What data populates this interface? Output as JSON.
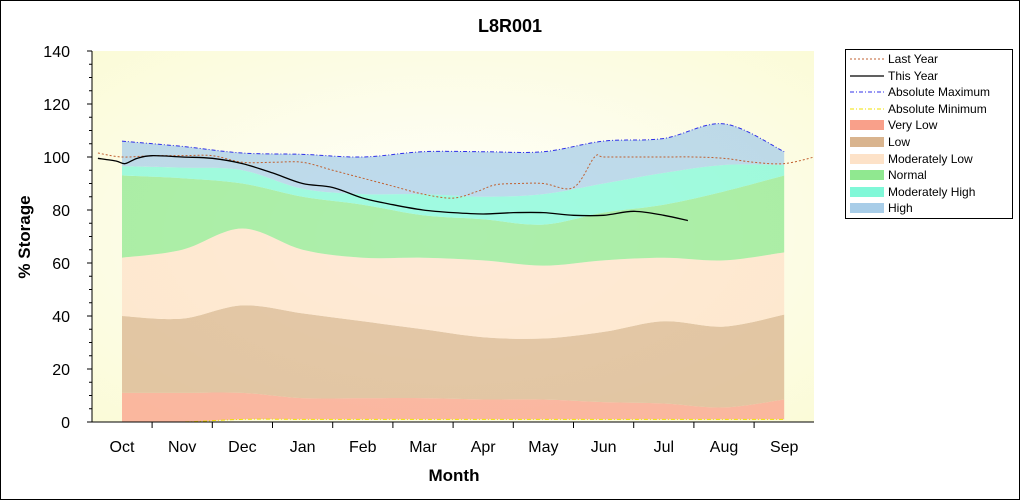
{
  "chart_data": {
    "type": "area",
    "title": "L8R001",
    "xlabel": "Month",
    "ylabel": "% Storage",
    "ylim": [
      0,
      140
    ],
    "yticks": [
      0,
      20,
      40,
      60,
      80,
      100,
      120,
      140
    ],
    "grid": false,
    "legend_position": "right",
    "categories": [
      "Oct",
      "Nov",
      "Dec",
      "Jan",
      "Feb",
      "Mar",
      "Apr",
      "May",
      "Jun",
      "Jul",
      "Aug",
      "Sep"
    ],
    "bands": [
      {
        "name": "Very Low",
        "color": "#f9a08a",
        "lower": [
          0,
          0,
          1,
          1,
          1,
          1,
          1,
          1,
          1,
          1,
          1,
          1
        ],
        "upper": [
          11,
          11,
          11,
          9,
          9,
          9,
          8.5,
          8.5,
          7.5,
          7,
          5.5,
          8.5
        ]
      },
      {
        "name": "Low",
        "color": "#d9b48e",
        "lower": [
          11,
          11,
          11,
          9,
          9,
          9,
          8.5,
          8.5,
          7.5,
          7,
          5.5,
          8.5
        ],
        "upper": [
          40,
          39,
          44,
          41,
          38,
          35,
          32,
          31.5,
          34,
          38,
          36,
          40.5
        ]
      },
      {
        "name": "Moderately Low",
        "color": "#fde2c8",
        "lower": [
          40,
          39,
          44,
          41,
          38,
          35,
          32,
          31.5,
          34,
          38,
          36,
          40.5
        ],
        "upper": [
          62,
          65,
          73,
          65,
          62,
          62,
          61,
          59,
          61,
          62,
          61,
          64
        ]
      },
      {
        "name": "Normal",
        "color": "#90e890",
        "lower": [
          62,
          65,
          73,
          65,
          62,
          62,
          61,
          59,
          61,
          62,
          61,
          64
        ],
        "upper": [
          93,
          92,
          90,
          85,
          82,
          78,
          76.5,
          74.5,
          79,
          82,
          87,
          93
        ]
      },
      {
        "name": "Moderately High",
        "color": "#80f8d8",
        "lower": [
          93,
          92,
          90,
          85,
          82,
          78,
          76.5,
          74.5,
          79,
          82,
          87,
          93
        ],
        "upper": [
          96.5,
          96,
          95,
          88,
          86,
          86,
          85,
          86,
          90,
          94,
          97,
          97
        ]
      },
      {
        "name": "High",
        "color": "#a8cde8",
        "lower": [
          96.5,
          96,
          95,
          88,
          86,
          86,
          85,
          86,
          90,
          94,
          97,
          97
        ],
        "upper": [
          106,
          104,
          101.5,
          101,
          100,
          102,
          102,
          102,
          106,
          107,
          112.5,
          102
        ]
      }
    ],
    "lines": [
      {
        "name": "Last Year",
        "color": "#c06030",
        "style": "dotted",
        "x": [
          -0.4,
          0,
          0.5,
          1,
          1.5,
          2,
          2.5,
          3,
          3.5,
          4,
          4.5,
          5,
          5.5,
          5.9,
          6.2,
          6.6,
          7.0,
          7.5,
          7.85,
          8.0,
          8.5,
          9,
          9.5,
          10,
          10.5,
          11,
          11.5
        ],
        "y": [
          101.5,
          100,
          100.5,
          100.5,
          100.5,
          98,
          98,
          98,
          95,
          92,
          89,
          86,
          84.5,
          87,
          89.5,
          90,
          90,
          88.5,
          100,
          100,
          100,
          100,
          100,
          99.5,
          98,
          97.5,
          100
        ]
      },
      {
        "name": "This Year",
        "color": "#000000",
        "style": "solid",
        "x": [
          -0.4,
          -0.1,
          0.05,
          0.25,
          0.5,
          1,
          1.5,
          2,
          2.5,
          3,
          3.5,
          4,
          4.5,
          5,
          5.5,
          6,
          6.5,
          7,
          7.5,
          8,
          8.5,
          9,
          9.4
        ],
        "y": [
          99.5,
          98.5,
          97.5,
          99.5,
          100.5,
          100,
          99.5,
          97.5,
          94,
          90,
          88.5,
          84.5,
          82,
          80,
          79,
          78.5,
          79,
          79,
          78,
          78,
          79.5,
          78,
          76
        ]
      },
      {
        "name": "Absolute Maximum",
        "color": "#3030e8",
        "style": "dashdot",
        "x": [
          0,
          1,
          2,
          3,
          4,
          5,
          6,
          7,
          8,
          9,
          10,
          11
        ],
        "y": [
          106,
          104,
          101.5,
          101,
          100,
          102,
          102,
          102,
          106,
          107,
          112.5,
          102
        ]
      },
      {
        "name": "Absolute Minimum",
        "color": "#f0e000",
        "style": "dashdot",
        "x": [
          0,
          1,
          2,
          3,
          4,
          5,
          6,
          7,
          8,
          9,
          10,
          11
        ],
        "y": [
          0,
          0,
          1,
          1,
          1,
          1,
          1,
          1,
          1,
          1,
          1,
          1
        ]
      }
    ]
  },
  "legend": {
    "items": [
      {
        "label": "Last Year",
        "kind": "line",
        "color": "#c06030",
        "style": "dotted"
      },
      {
        "label": "This Year",
        "kind": "line",
        "color": "#000000",
        "style": "solid"
      },
      {
        "label": "Absolute Maximum",
        "kind": "line",
        "color": "#3030e8",
        "style": "dashdot"
      },
      {
        "label": "Absolute Minimum",
        "kind": "line",
        "color": "#f0e000",
        "style": "dashdot"
      },
      {
        "label": "Very Low",
        "kind": "fill",
        "color": "#f9a08a"
      },
      {
        "label": "Low",
        "kind": "fill",
        "color": "#d9b48e"
      },
      {
        "label": "Moderately Low",
        "kind": "fill",
        "color": "#fde2c8"
      },
      {
        "label": "Normal",
        "kind": "fill",
        "color": "#90e890"
      },
      {
        "label": "Moderately High",
        "kind": "fill",
        "color": "#80f8d8"
      },
      {
        "label": "High",
        "kind": "fill",
        "color": "#a8cde8"
      }
    ]
  },
  "colors": {
    "plot_background_edge": "#fdfde0",
    "plot_background_center": "#ffffff"
  }
}
